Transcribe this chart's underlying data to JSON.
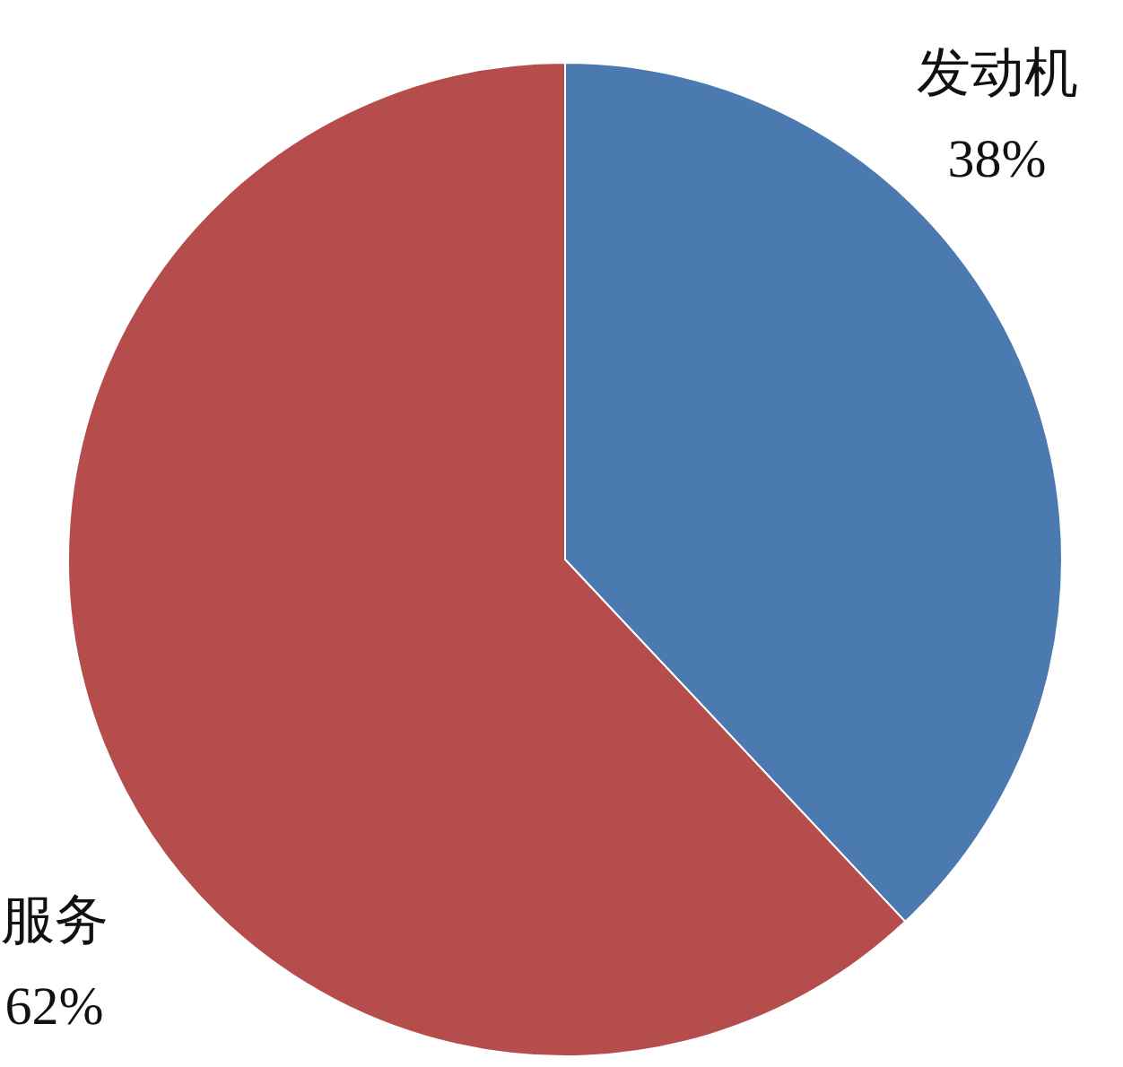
{
  "chart_data": {
    "type": "pie",
    "categories": [
      "发动机",
      "服务"
    ],
    "values": [
      38,
      62
    ],
    "colors": [
      "#4a7ab0",
      "#b54d4c"
    ],
    "value_labels": [
      "38%",
      "62%"
    ]
  }
}
